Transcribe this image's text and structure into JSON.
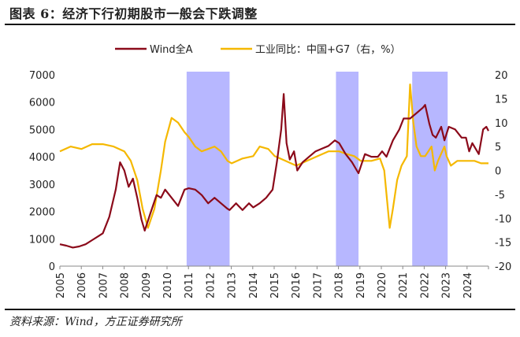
{
  "header": {
    "title": "图表 6：经济下行初期股市一般会下跌调整"
  },
  "footer": {
    "source": "资料来源：Wind，方正证券研究所"
  },
  "chart_data": {
    "type": "line",
    "legend": {
      "placement": "top-center"
    },
    "grid": false,
    "x_ticks": [
      "2005",
      "2006",
      "2007",
      "2008",
      "2009",
      "2010",
      "2011",
      "2012",
      "2013",
      "2014",
      "2015",
      "2016",
      "2017",
      "2018",
      "2019",
      "2020",
      "2021",
      "2022",
      "2023",
      "2024"
    ],
    "x_range": [
      2005.0,
      2024.95
    ],
    "y_left": {
      "min": 0,
      "max": 7000,
      "ticks": [
        0,
        1000,
        2000,
        3000,
        4000,
        5000,
        6000,
        7000
      ]
    },
    "y_right": {
      "min": -20,
      "max": 20,
      "ticks": [
        -20,
        -15,
        -10,
        -5,
        0,
        5,
        10,
        15,
        20
      ]
    },
    "shaded_periods": [
      [
        2010.9,
        2012.9
      ],
      [
        2017.85,
        2018.9
      ],
      [
        2021.4,
        2023.05
      ]
    ],
    "shade_color": "#aaaaff",
    "series": [
      {
        "name": "Wind全A",
        "axis": "left",
        "color": "#8b0a1a",
        "points": [
          [
            2005.0,
            800
          ],
          [
            2005.3,
            750
          ],
          [
            2005.6,
            680
          ],
          [
            2005.9,
            720
          ],
          [
            2006.2,
            800
          ],
          [
            2006.5,
            950
          ],
          [
            2006.8,
            1100
          ],
          [
            2007.0,
            1200
          ],
          [
            2007.3,
            1800
          ],
          [
            2007.6,
            2800
          ],
          [
            2007.8,
            3800
          ],
          [
            2008.0,
            3500
          ],
          [
            2008.2,
            2900
          ],
          [
            2008.4,
            3200
          ],
          [
            2008.6,
            2500
          ],
          [
            2008.8,
            1700
          ],
          [
            2008.95,
            1300
          ],
          [
            2009.2,
            1900
          ],
          [
            2009.5,
            2600
          ],
          [
            2009.7,
            2500
          ],
          [
            2009.9,
            2800
          ],
          [
            2010.2,
            2500
          ],
          [
            2010.5,
            2200
          ],
          [
            2010.8,
            2800
          ],
          [
            2011.0,
            2850
          ],
          [
            2011.3,
            2800
          ],
          [
            2011.6,
            2600
          ],
          [
            2011.9,
            2300
          ],
          [
            2012.2,
            2500
          ],
          [
            2012.5,
            2300
          ],
          [
            2012.8,
            2100
          ],
          [
            2012.9,
            2050
          ],
          [
            2013.2,
            2300
          ],
          [
            2013.5,
            2050
          ],
          [
            2013.8,
            2300
          ],
          [
            2014.0,
            2150
          ],
          [
            2014.3,
            2300
          ],
          [
            2014.6,
            2500
          ],
          [
            2014.9,
            2800
          ],
          [
            2015.1,
            3800
          ],
          [
            2015.3,
            5000
          ],
          [
            2015.42,
            6300
          ],
          [
            2015.55,
            4500
          ],
          [
            2015.7,
            3900
          ],
          [
            2015.9,
            4200
          ],
          [
            2016.05,
            3500
          ],
          [
            2016.3,
            3800
          ],
          [
            2016.6,
            4000
          ],
          [
            2016.9,
            4200
          ],
          [
            2017.2,
            4300
          ],
          [
            2017.5,
            4400
          ],
          [
            2017.8,
            4600
          ],
          [
            2018.0,
            4500
          ],
          [
            2018.3,
            4100
          ],
          [
            2018.6,
            3800
          ],
          [
            2018.9,
            3400
          ],
          [
            2019.2,
            4100
          ],
          [
            2019.5,
            4000
          ],
          [
            2019.8,
            4000
          ],
          [
            2020.0,
            4200
          ],
          [
            2020.2,
            4000
          ],
          [
            2020.5,
            4600
          ],
          [
            2020.8,
            5000
          ],
          [
            2021.0,
            5400
          ],
          [
            2021.3,
            5400
          ],
          [
            2021.6,
            5600
          ],
          [
            2021.9,
            5800
          ],
          [
            2022.0,
            5900
          ],
          [
            2022.2,
            5200
          ],
          [
            2022.35,
            4800
          ],
          [
            2022.5,
            4700
          ],
          [
            2022.75,
            5100
          ],
          [
            2022.9,
            4600
          ],
          [
            2023.1,
            5100
          ],
          [
            2023.4,
            5000
          ],
          [
            2023.7,
            4700
          ],
          [
            2023.9,
            4700
          ],
          [
            2024.05,
            4200
          ],
          [
            2024.2,
            4500
          ],
          [
            2024.5,
            4100
          ],
          [
            2024.7,
            5000
          ],
          [
            2024.85,
            5100
          ],
          [
            2024.95,
            4950
          ]
        ]
      },
      {
        "name": "工业同比：中国+G7（右，%）",
        "axis": "right",
        "color": "#f5b800",
        "points": [
          [
            2005.0,
            4
          ],
          [
            2005.5,
            5
          ],
          [
            2006.0,
            4.5
          ],
          [
            2006.5,
            5.5
          ],
          [
            2007.0,
            5.5
          ],
          [
            2007.5,
            5
          ],
          [
            2008.0,
            4
          ],
          [
            2008.3,
            2
          ],
          [
            2008.6,
            -2
          ],
          [
            2008.85,
            -8
          ],
          [
            2009.1,
            -12
          ],
          [
            2009.4,
            -8
          ],
          [
            2009.7,
            0
          ],
          [
            2009.9,
            6
          ],
          [
            2010.2,
            11
          ],
          [
            2010.5,
            10
          ],
          [
            2010.8,
            8
          ],
          [
            2011.0,
            7
          ],
          [
            2011.3,
            5
          ],
          [
            2011.6,
            4
          ],
          [
            2011.9,
            4.5
          ],
          [
            2012.2,
            5
          ],
          [
            2012.5,
            4
          ],
          [
            2012.8,
            2
          ],
          [
            2013.0,
            1.5
          ],
          [
            2013.5,
            2.5
          ],
          [
            2014.0,
            3
          ],
          [
            2014.3,
            5
          ],
          [
            2014.7,
            4.5
          ],
          [
            2015.0,
            3
          ],
          [
            2015.5,
            2
          ],
          [
            2016.0,
            1
          ],
          [
            2016.5,
            2
          ],
          [
            2017.0,
            3
          ],
          [
            2017.5,
            4
          ],
          [
            2018.0,
            4
          ],
          [
            2018.3,
            3.5
          ],
          [
            2018.7,
            3
          ],
          [
            2019.0,
            2
          ],
          [
            2019.5,
            2
          ],
          [
            2019.9,
            2.5
          ],
          [
            2020.1,
            0
          ],
          [
            2020.35,
            -12
          ],
          [
            2020.5,
            -8
          ],
          [
            2020.7,
            -2
          ],
          [
            2020.9,
            1
          ],
          [
            2021.15,
            3
          ],
          [
            2021.3,
            18
          ],
          [
            2021.45,
            10
          ],
          [
            2021.6,
            5
          ],
          [
            2021.8,
            3
          ],
          [
            2022.0,
            3
          ],
          [
            2022.3,
            5
          ],
          [
            2022.45,
            0
          ],
          [
            2022.6,
            2
          ],
          [
            2022.9,
            5
          ],
          [
            2023.0,
            3
          ],
          [
            2023.2,
            1
          ],
          [
            2023.5,
            2
          ],
          [
            2023.8,
            2
          ],
          [
            2024.0,
            2
          ],
          [
            2024.3,
            2
          ],
          [
            2024.6,
            1.5
          ],
          [
            2024.95,
            1.5
          ]
        ]
      }
    ]
  }
}
